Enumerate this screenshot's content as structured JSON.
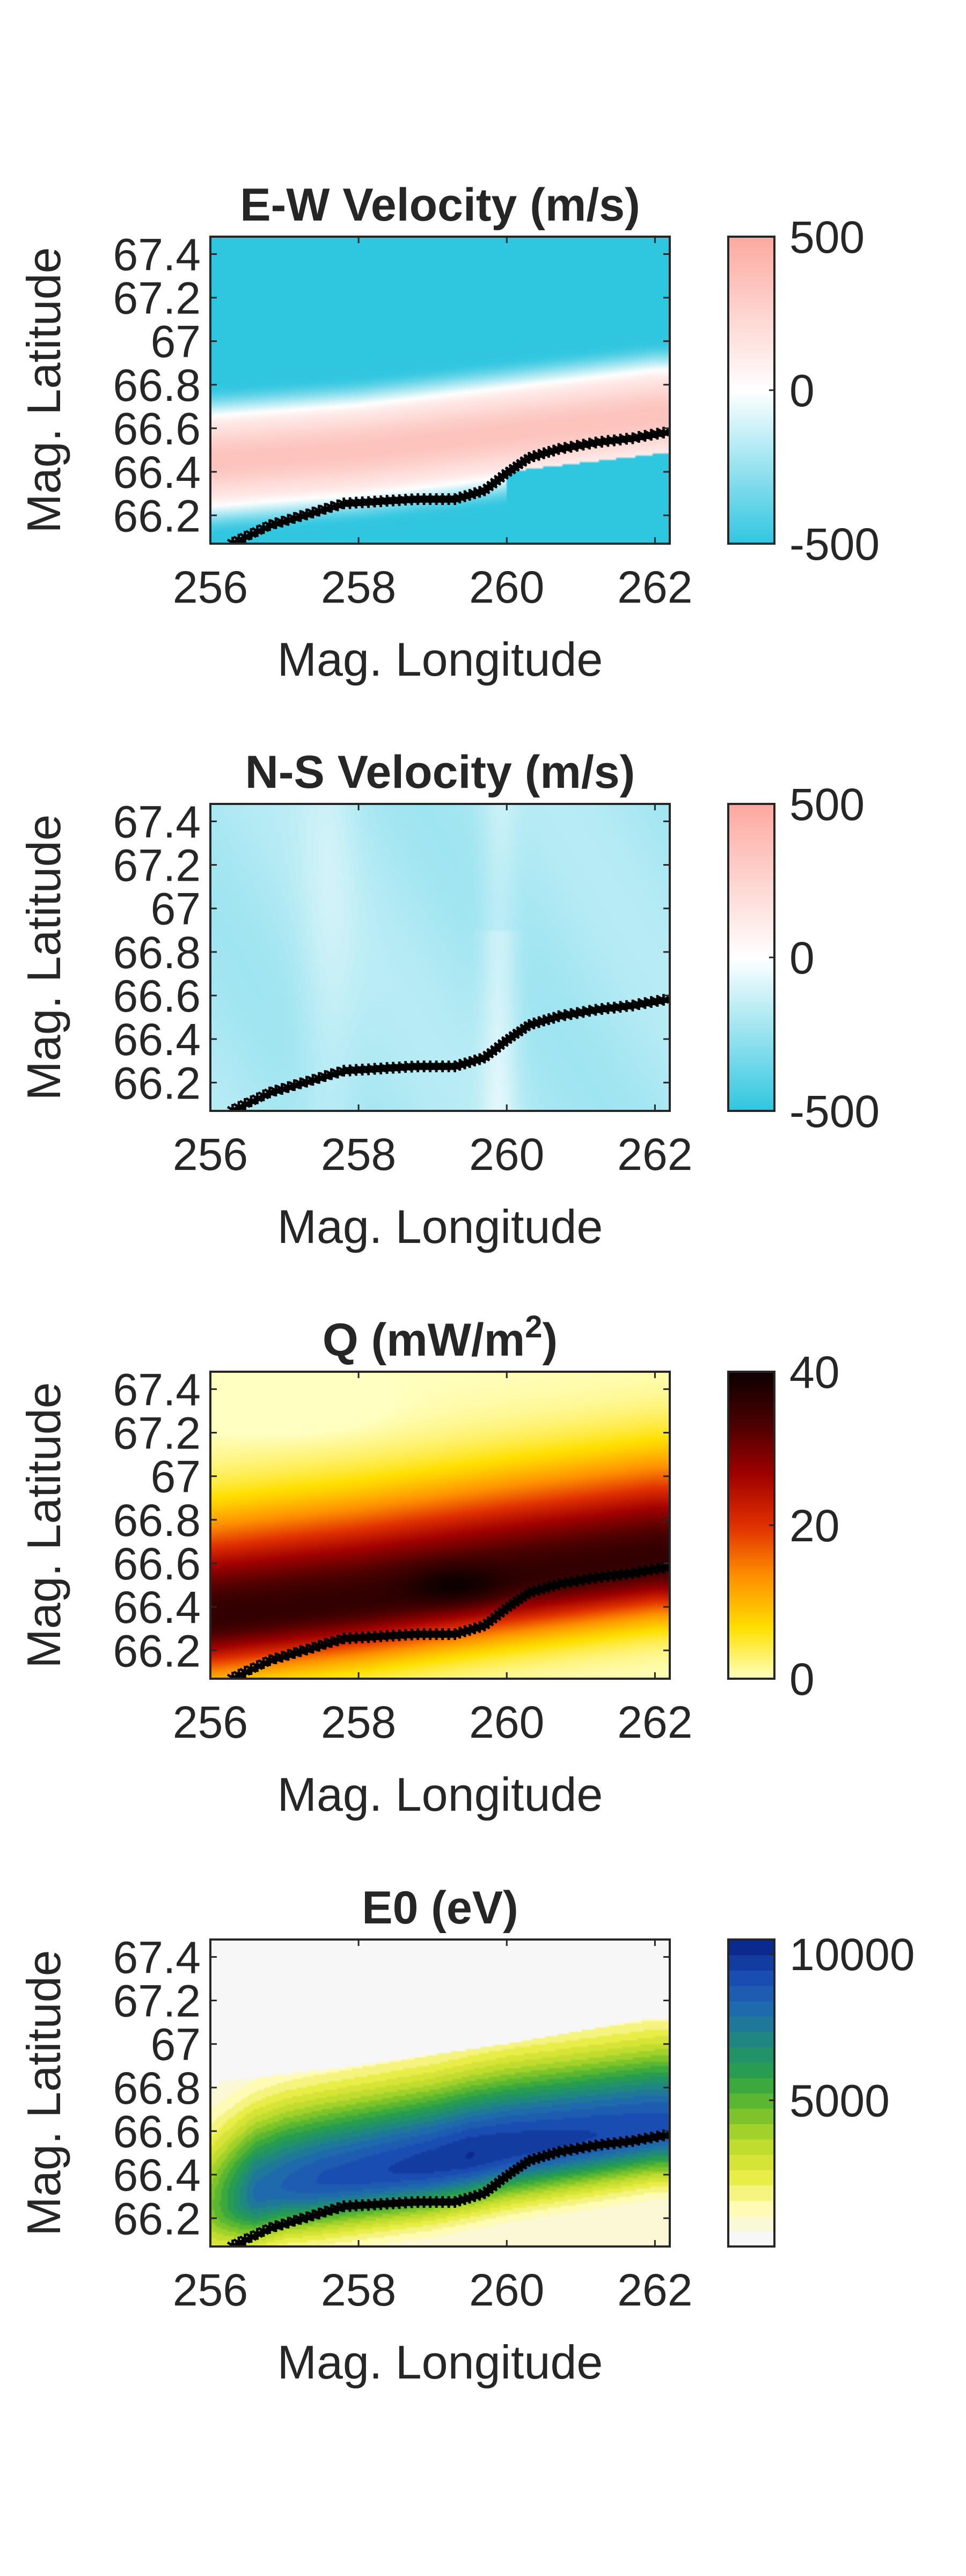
{
  "chart_data": [
    {
      "type": "heatmap",
      "title": "E-W Velocity (m/s)",
      "title_main": "E-W Velocity (m/s)",
      "title_sup": "",
      "title_tail": "",
      "xlabel": "Mag. Longitude",
      "ylabel": "Mag. Latitude",
      "xlim": [
        256,
        262.2
      ],
      "ylim": [
        66.07,
        67.48
      ],
      "xticks": [
        256,
        258,
        260,
        262
      ],
      "xtick_labels": [
        "256",
        "258",
        "260",
        "262"
      ],
      "yticks": [
        66.2,
        66.4,
        66.6,
        66.8,
        67,
        67.2,
        67.4
      ],
      "ytick_labels": [
        "66.2",
        "66.4",
        "66.6",
        "66.8",
        "67",
        "67.2",
        "67.4"
      ],
      "colorbar": {
        "ticks": [
          -500,
          0,
          500
        ],
        "tick_labels": [
          "-500",
          "0",
          "500"
        ],
        "range": [
          -500,
          500
        ],
        "colors": [
          "#2fc6e0",
          "#ffffff",
          "#fca9a0"
        ]
      },
      "field": {
        "kind": "ew",
        "longitudes": [
          256,
          258,
          260,
          262
        ],
        "center_latitudes": [
          66.45,
          66.5,
          66.58,
          66.66
        ],
        "values_description_keys": [
          "peak",
          "trough"
        ],
        "peak": 350,
        "trough": -500
      },
      "boundary": {
        "marker": "*",
        "color": "#000000",
        "points": [
          {
            "x": 256.3,
            "y": 66.07
          },
          {
            "x": 256.8,
            "y": 66.15
          },
          {
            "x": 257.3,
            "y": 66.2
          },
          {
            "x": 257.8,
            "y": 66.25
          },
          {
            "x": 258.3,
            "y": 66.26
          },
          {
            "x": 258.8,
            "y": 66.27
          },
          {
            "x": 259.3,
            "y": 66.27
          },
          {
            "x": 259.7,
            "y": 66.31
          },
          {
            "x": 260.0,
            "y": 66.39
          },
          {
            "x": 260.3,
            "y": 66.46
          },
          {
            "x": 260.7,
            "y": 66.5
          },
          {
            "x": 261.2,
            "y": 66.53
          },
          {
            "x": 261.7,
            "y": 66.55
          },
          {
            "x": 262.2,
            "y": 66.58
          }
        ]
      }
    },
    {
      "type": "heatmap",
      "title": "N-S Velocity (m/s)",
      "title_main": "N-S Velocity (m/s)",
      "title_sup": "",
      "title_tail": "",
      "xlabel": "Mag. Longitude",
      "ylabel": "Mag. Latitude",
      "xlim": [
        256,
        262.2
      ],
      "ylim": [
        66.07,
        67.48
      ],
      "xticks": [
        256,
        258,
        260,
        262
      ],
      "xtick_labels": [
        "256",
        "258",
        "260",
        "262"
      ],
      "yticks": [
        66.2,
        66.4,
        66.6,
        66.8,
        67,
        67.2,
        67.4
      ],
      "ytick_labels": [
        "66.2",
        "66.4",
        "66.6",
        "66.8",
        "67",
        "67.2",
        "67.4"
      ],
      "colorbar": {
        "ticks": [
          -500,
          0,
          500
        ],
        "tick_labels": [
          "-500",
          "0",
          "500"
        ],
        "range": [
          -500,
          500
        ],
        "colors": [
          "#2fc6e0",
          "#ffffff",
          "#fca9a0"
        ]
      },
      "field": {
        "kind": "ns",
        "typical_value": -200
      },
      "boundary": {
        "marker": "*",
        "color": "#000000",
        "points": [
          {
            "x": 256.3,
            "y": 66.07
          },
          {
            "x": 256.8,
            "y": 66.15
          },
          {
            "x": 257.3,
            "y": 66.2
          },
          {
            "x": 257.8,
            "y": 66.25
          },
          {
            "x": 258.3,
            "y": 66.26
          },
          {
            "x": 258.8,
            "y": 66.27
          },
          {
            "x": 259.3,
            "y": 66.27
          },
          {
            "x": 259.7,
            "y": 66.31
          },
          {
            "x": 260.0,
            "y": 66.39
          },
          {
            "x": 260.3,
            "y": 66.46
          },
          {
            "x": 260.7,
            "y": 66.5
          },
          {
            "x": 261.2,
            "y": 66.53
          },
          {
            "x": 261.7,
            "y": 66.55
          },
          {
            "x": 262.2,
            "y": 66.58
          }
        ]
      }
    },
    {
      "type": "heatmap",
      "title": "Q (mW/m2)",
      "title_main": "Q (mW/m",
      "title_sup": "2",
      "title_tail": ")",
      "xlabel": "Mag. Longitude",
      "ylabel": "Mag. Latitude",
      "xlim": [
        256,
        262.2
      ],
      "ylim": [
        66.07,
        67.48
      ],
      "xticks": [
        256,
        258,
        260,
        262
      ],
      "xtick_labels": [
        "256",
        "258",
        "260",
        "262"
      ],
      "yticks": [
        66.2,
        66.4,
        66.6,
        66.8,
        67,
        67.2,
        67.4
      ],
      "ytick_labels": [
        "66.2",
        "66.4",
        "66.6",
        "66.8",
        "67",
        "67.2",
        "67.4"
      ],
      "colorbar": {
        "ticks": [
          0,
          20,
          40
        ],
        "tick_labels": [
          "0",
          "20",
          "40"
        ],
        "range": [
          0,
          40
        ],
        "colors": [
          "#ffffc0",
          "#ffe000",
          "#ff9000",
          "#e03000",
          "#a00000",
          "#4a0000",
          "#0d0000"
        ]
      },
      "field": {
        "kind": "q",
        "peak": 36,
        "minimum": 0
      },
      "boundary": {
        "marker": "*",
        "color": "#000000",
        "points": [
          {
            "x": 256.3,
            "y": 66.07
          },
          {
            "x": 256.8,
            "y": 66.15
          },
          {
            "x": 257.3,
            "y": 66.2
          },
          {
            "x": 257.8,
            "y": 66.25
          },
          {
            "x": 258.3,
            "y": 66.26
          },
          {
            "x": 258.8,
            "y": 66.27
          },
          {
            "x": 259.3,
            "y": 66.27
          },
          {
            "x": 259.7,
            "y": 66.31
          },
          {
            "x": 260.0,
            "y": 66.39
          },
          {
            "x": 260.3,
            "y": 66.46
          },
          {
            "x": 260.7,
            "y": 66.5
          },
          {
            "x": 261.2,
            "y": 66.53
          },
          {
            "x": 261.7,
            "y": 66.55
          },
          {
            "x": 262.2,
            "y": 66.58
          }
        ]
      }
    },
    {
      "type": "heatmap",
      "title": "E0 (eV)",
      "title_main": "E0 (eV)",
      "title_sup": "",
      "title_tail": "",
      "xlabel": "Mag. Longitude",
      "ylabel": "Mag. Latitude",
      "xlim": [
        256,
        262.2
      ],
      "ylim": [
        66.07,
        67.48
      ],
      "xticks": [
        256,
        258,
        260,
        262
      ],
      "xtick_labels": [
        "256",
        "258",
        "260",
        "262"
      ],
      "yticks": [
        66.2,
        66.4,
        66.6,
        66.8,
        67,
        67.2,
        67.4
      ],
      "ytick_labels": [
        "66.2",
        "66.4",
        "66.6",
        "66.8",
        "67",
        "67.2",
        "67.4"
      ],
      "colorbar": {
        "ticks": [
          5000,
          10000
        ],
        "tick_labels": [
          "5000",
          "10000"
        ],
        "range": [
          0,
          10500
        ],
        "levels": 20,
        "colors": [
          "#f7f7f7",
          "#fffbb0",
          "#e6eb3c",
          "#b9d92b",
          "#6cbf2a",
          "#2aa145",
          "#1f8b7a",
          "#1f6dab",
          "#1b4fb4",
          "#0b2a8f"
        ]
      },
      "field": {
        "kind": "e0",
        "peak": 10000,
        "minimum": 0
      },
      "boundary": {
        "marker": "*",
        "color": "#000000",
        "points": [
          {
            "x": 256.3,
            "y": 66.07
          },
          {
            "x": 256.8,
            "y": 66.15
          },
          {
            "x": 257.3,
            "y": 66.2
          },
          {
            "x": 257.8,
            "y": 66.25
          },
          {
            "x": 258.3,
            "y": 66.26
          },
          {
            "x": 258.8,
            "y": 66.27
          },
          {
            "x": 259.3,
            "y": 66.27
          },
          {
            "x": 259.7,
            "y": 66.31
          },
          {
            "x": 260.0,
            "y": 66.39
          },
          {
            "x": 260.3,
            "y": 66.46
          },
          {
            "x": 260.7,
            "y": 66.5
          },
          {
            "x": 261.2,
            "y": 66.53
          },
          {
            "x": 261.7,
            "y": 66.55
          },
          {
            "x": 262.2,
            "y": 66.58
          }
        ]
      }
    }
  ]
}
